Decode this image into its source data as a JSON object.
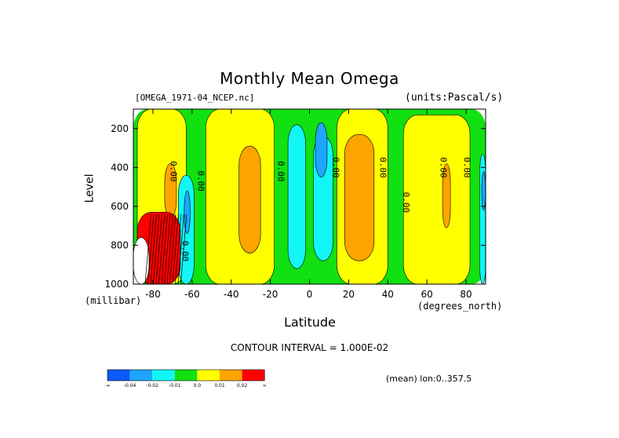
{
  "chart_data": {
    "type": "heatmap",
    "title": "Monthly Mean Omega",
    "dataset_label": "[OMEGA_1971-04_NCEP.nc]",
    "units_label": "(units:Pascal/s)",
    "xlabel": "Latitude",
    "x_unit_label": "(degrees_north)",
    "ylabel": "Level",
    "y_unit_label": "(millibar)",
    "xlim": [
      -90,
      90
    ],
    "ylim": [
      1000,
      100
    ],
    "x_ticks": [
      "-80",
      "-60",
      "-40",
      "-20",
      "0",
      "20",
      "40",
      "60",
      "80"
    ],
    "x_tick_values": [
      -80,
      -60,
      -40,
      -20,
      0,
      20,
      40,
      60,
      80
    ],
    "y_ticks": [
      "200",
      "400",
      "600",
      "800",
      "1000"
    ],
    "y_tick_values": [
      200,
      400,
      600,
      800,
      1000
    ],
    "contour_interval_label": "CONTOUR INTERVAL = 1.000E-02",
    "mean_label": "(mean) lon:0..357.5",
    "contour_labels": [
      {
        "text": "0.00",
        "lat": -71,
        "lev": 420
      },
      {
        "text": "0.00",
        "lat": -57,
        "lev": 470
      },
      {
        "text": "0.00",
        "lat": -16,
        "lev": 420
      },
      {
        "text": "0.00",
        "lat": 12,
        "lev": 400
      },
      {
        "text": "0.00",
        "lat": 36,
        "lev": 400
      },
      {
        "text": "0.00",
        "lat": 48,
        "lev": 580
      },
      {
        "text": "0.00",
        "lat": 67,
        "lev": 400
      },
      {
        "text": "0.00",
        "lat": 79,
        "lev": 400
      },
      {
        "text": "0.00",
        "lat": -65,
        "lev": 830
      }
    ],
    "colorbar": {
      "colors": [
        "#0a5bff",
        "#1ea6ff",
        "#12f6f6",
        "#11e011",
        "#ffff00",
        "#ffa500",
        "#ff0000"
      ],
      "labels": [
        "-∞",
        "-0.04",
        "-0.02",
        "-0.01",
        "0.0",
        "0.01",
        "0.02",
        "∞"
      ]
    },
    "regions": [
      {
        "color": "#11e011",
        "lat": [
          -90,
          90
        ],
        "lev": [
          100,
          1000
        ]
      },
      {
        "color": "#ffff00",
        "lat": [
          -88,
          -63
        ],
        "lev": [
          100,
          1000
        ]
      },
      {
        "color": "#ffff00",
        "lat": [
          -53,
          -18
        ],
        "lev": [
          100,
          1000
        ]
      },
      {
        "color": "#ffff00",
        "lat": [
          14,
          40
        ],
        "lev": [
          100,
          1000
        ]
      },
      {
        "color": "#ffff00",
        "lat": [
          48,
          82
        ],
        "lev": [
          130,
          1000
        ]
      },
      {
        "color": "#ffa500",
        "lat": [
          -36,
          -25
        ],
        "lev": [
          290,
          840
        ]
      },
      {
        "color": "#ffa500",
        "lat": [
          18,
          33
        ],
        "lev": [
          230,
          880
        ]
      },
      {
        "color": "#ffa500",
        "lat": [
          -74,
          -68
        ],
        "lev": [
          380,
          660
        ]
      },
      {
        "color": "#ffa500",
        "lat": [
          68,
          72
        ],
        "lev": [
          380,
          710
        ]
      },
      {
        "color": "#12f6f6",
        "lat": [
          -11,
          -2
        ],
        "lev": [
          180,
          920
        ]
      },
      {
        "color": "#12f6f6",
        "lat": [
          2,
          12
        ],
        "lev": [
          240,
          880
        ]
      },
      {
        "color": "#1ea6ff",
        "lat": [
          3,
          9
        ],
        "lev": [
          170,
          450
        ]
      },
      {
        "color": "#12f6f6",
        "lat": [
          -67,
          -59
        ],
        "lev": [
          440,
          1000
        ]
      },
      {
        "color": "#1ea6ff",
        "lat": [
          -64,
          -61
        ],
        "lev": [
          520,
          740
        ]
      },
      {
        "color": "#12f6f6",
        "lat": [
          87,
          90
        ],
        "lev": [
          330,
          1000
        ]
      },
      {
        "color": "#1ea6ff",
        "lat": [
          88,
          90
        ],
        "lev": [
          420,
          620
        ]
      },
      {
        "color": "#ff0000",
        "lat": [
          -88,
          -66
        ],
        "lev": [
          630,
          1000
        ]
      },
      {
        "color": "#ffffff",
        "lat": [
          -90,
          -82
        ],
        "lev": [
          760,
          1000
        ]
      }
    ]
  }
}
